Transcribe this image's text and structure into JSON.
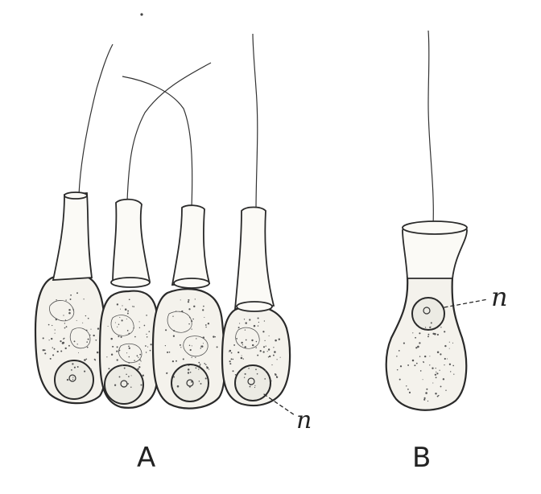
{
  "figure": {
    "panels": [
      {
        "id": "A",
        "label": "A",
        "nucleus_label": "n"
      },
      {
        "id": "B",
        "label": "B",
        "nucleus_label": "n"
      }
    ]
  },
  "style": {
    "ink": "#2a2a2a",
    "cell_fill": "#f4f2ec",
    "background": "#ffffff"
  }
}
